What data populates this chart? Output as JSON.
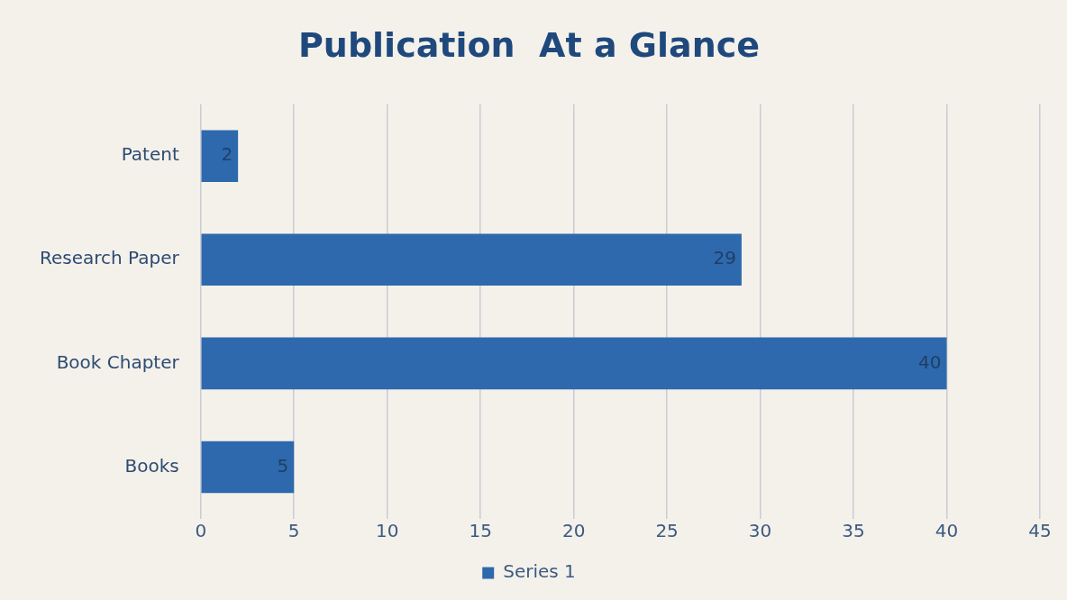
{
  "chart_data": {
    "type": "bar",
    "orientation": "horizontal",
    "title": "Publication  At a Glance",
    "categories": [
      "Patent",
      "Research Paper",
      "Book Chapter",
      "Books"
    ],
    "series": [
      {
        "name": "Series 1",
        "color": "#2e69ad",
        "values": [
          2,
          29,
          40,
          5
        ]
      }
    ],
    "xlim": [
      0,
      45
    ],
    "xticks": [
      0,
      5,
      10,
      15,
      20,
      25,
      30,
      35,
      40,
      45
    ],
    "grid": "x",
    "legend": "bottom",
    "data_labels": true
  }
}
